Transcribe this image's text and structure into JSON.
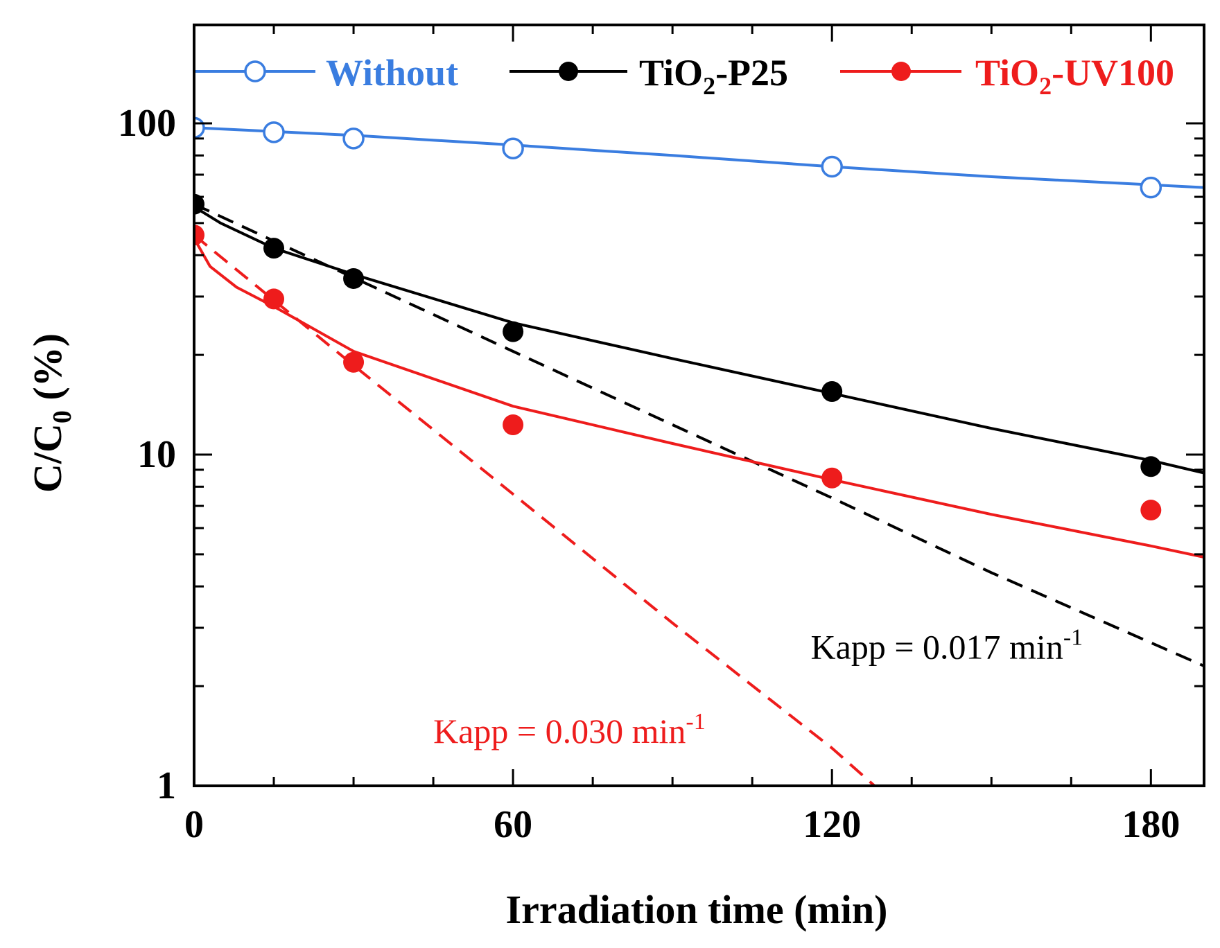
{
  "chart_data": {
    "type": "line",
    "xlabel": "Irradiation time (min)",
    "ylabel": {
      "main": "C/C",
      "sub": "0",
      "unit": " (%)"
    },
    "xlim": [
      0,
      190
    ],
    "ylim": [
      1,
      170
    ],
    "yscale": "log",
    "x_ticks": [
      {
        "value": 0,
        "label": "0"
      },
      {
        "value": 60,
        "label": "60"
      },
      {
        "value": 120,
        "label": "120"
      },
      {
        "value": 180,
        "label": "180"
      }
    ],
    "y_ticks": [
      {
        "value": 1,
        "label": "1"
      },
      {
        "value": 10,
        "label": "10"
      },
      {
        "value": 100,
        "label": "100"
      }
    ],
    "legend": {
      "placement": "top",
      "entries": [
        {
          "series": "without",
          "main": "Without",
          "sub": "",
          "rest": ""
        },
        {
          "series": "p25",
          "main": "TiO",
          "sub": "2",
          "rest": "-P25"
        },
        {
          "series": "uv100",
          "main": "TiO",
          "sub": "2",
          "rest": "-UV100"
        }
      ]
    },
    "series": [
      {
        "id": "without",
        "name": "Without",
        "color": "#3a7de0",
        "marker": "open-circle",
        "points": [
          {
            "x": 0,
            "y": 97
          },
          {
            "x": 15,
            "y": 94
          },
          {
            "x": 30,
            "y": 90
          },
          {
            "x": 60,
            "y": 84
          },
          {
            "x": 120,
            "y": 74
          },
          {
            "x": 180,
            "y": 64
          }
        ],
        "fit": [
          {
            "x": 0,
            "y": 97
          },
          {
            "x": 30,
            "y": 92
          },
          {
            "x": 60,
            "y": 86
          },
          {
            "x": 90,
            "y": 80
          },
          {
            "x": 120,
            "y": 74
          },
          {
            "x": 150,
            "y": 69
          },
          {
            "x": 190,
            "y": 64
          }
        ]
      },
      {
        "id": "p25",
        "name": "TiO2-P25",
        "color": "#000000",
        "marker": "filled-circle",
        "points": [
          {
            "x": 0,
            "y": 57
          },
          {
            "x": 15,
            "y": 42
          },
          {
            "x": 30,
            "y": 34
          },
          {
            "x": 60,
            "y": 23.5
          },
          {
            "x": 120,
            "y": 15.5
          },
          {
            "x": 180,
            "y": 9.2
          }
        ],
        "fit": [
          {
            "x": 0,
            "y": 56
          },
          {
            "x": 5,
            "y": 50
          },
          {
            "x": 15,
            "y": 42
          },
          {
            "x": 30,
            "y": 35
          },
          {
            "x": 60,
            "y": 25
          },
          {
            "x": 90,
            "y": 19.5
          },
          {
            "x": 120,
            "y": 15.3
          },
          {
            "x": 150,
            "y": 12
          },
          {
            "x": 180,
            "y": 9.6
          },
          {
            "x": 190,
            "y": 8.8
          }
        ],
        "exp_fit": [
          {
            "x": 0,
            "y": 57
          },
          {
            "x": 30,
            "y": 34.2
          },
          {
            "x": 60,
            "y": 20.5
          },
          {
            "x": 90,
            "y": 12.3
          },
          {
            "x": 120,
            "y": 7.4
          },
          {
            "x": 150,
            "y": 4.4
          },
          {
            "x": 190,
            "y": 2.3
          }
        ],
        "annotation": {
          "text": "Kapp = 0.017 min",
          "sup": "-1",
          "x": 116,
          "y": 2.6
        }
      },
      {
        "id": "uv100",
        "name": "TiO2-UV100",
        "color": "#ee1c1c",
        "marker": "filled-circle",
        "points": [
          {
            "x": 0,
            "y": 46
          },
          {
            "x": 15,
            "y": 29.5
          },
          {
            "x": 30,
            "y": 19
          },
          {
            "x": 60,
            "y": 12.3
          },
          {
            "x": 120,
            "y": 8.5
          },
          {
            "x": 180,
            "y": 6.8
          }
        ],
        "fit": [
          {
            "x": 0,
            "y": 45
          },
          {
            "x": 3,
            "y": 37
          },
          {
            "x": 8,
            "y": 32
          },
          {
            "x": 15,
            "y": 28
          },
          {
            "x": 30,
            "y": 20.5
          },
          {
            "x": 60,
            "y": 14
          },
          {
            "x": 90,
            "y": 10.8
          },
          {
            "x": 120,
            "y": 8.4
          },
          {
            "x": 150,
            "y": 6.6
          },
          {
            "x": 180,
            "y": 5.3
          },
          {
            "x": 190,
            "y": 4.9
          }
        ],
        "exp_fit": [
          {
            "x": 0,
            "y": 46
          },
          {
            "x": 30,
            "y": 18.6
          },
          {
            "x": 60,
            "y": 7.6
          },
          {
            "x": 90,
            "y": 3.1
          },
          {
            "x": 120,
            "y": 1.3
          },
          {
            "x": 128,
            "y": 1.0
          }
        ],
        "annotation": {
          "text": "Kapp = 0.030 min",
          "sup": "-1",
          "x": 45,
          "y": 1.45
        }
      }
    ]
  }
}
